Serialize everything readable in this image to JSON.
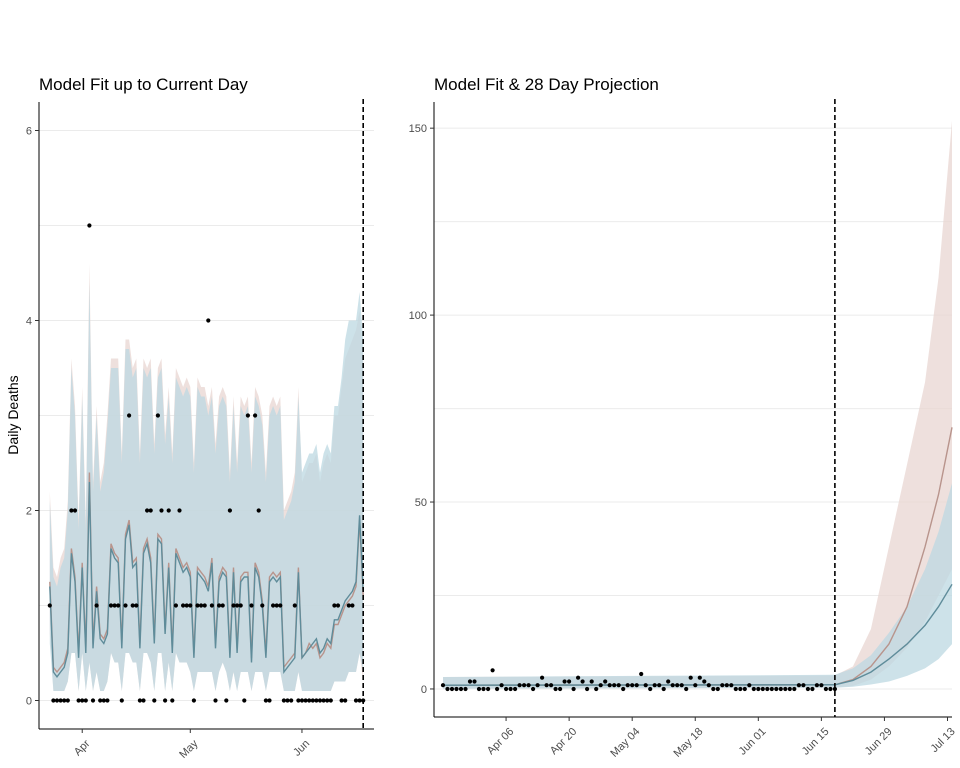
{
  "colors": {
    "ribbon_a": "#e8d5d1",
    "ribbon_b": "#bcd8e1",
    "overlap": "#c6d0d6",
    "line_a": "#b8948c",
    "line_b": "#5f8c9a",
    "points": "#000000",
    "vline": "#000000"
  },
  "chart_data": [
    {
      "type": "line",
      "title": "Model Fit up to Current Day",
      "xlabel": "",
      "ylabel": "Daily Deaths",
      "x_start": "2020-03-23",
      "x_end": "2020-06-19",
      "xlim": [
        "2020-03-20",
        "2020-06-21"
      ],
      "ylim": [
        -0.3,
        6.3
      ],
      "yticks": [
        0,
        2,
        4,
        6
      ],
      "xticks": [
        {
          "date": "2020-04-01",
          "label": "Apr"
        },
        {
          "date": "2020-05-01",
          "label": "May"
        },
        {
          "date": "2020-06-01",
          "label": "Jun"
        }
      ],
      "current_day": "2020-06-18",
      "observed": [
        1,
        0,
        0,
        0,
        0,
        0,
        2,
        2,
        0,
        0,
        0,
        5,
        0,
        1,
        0,
        0,
        0,
        1,
        1,
        1,
        0,
        1,
        3,
        1,
        1,
        0,
        0,
        2,
        2,
        0,
        3,
        2,
        0,
        2,
        0,
        1,
        2,
        1,
        1,
        1,
        0,
        1,
        1,
        1,
        4,
        1,
        0,
        1,
        1,
        0,
        2,
        1,
        1,
        1,
        0,
        3,
        1,
        3,
        2,
        1,
        0,
        0,
        1,
        1,
        1,
        0,
        0,
        0,
        1,
        0,
        0,
        0,
        0,
        0,
        0,
        0,
        0,
        0,
        0,
        1,
        1,
        0,
        0,
        1,
        1,
        0,
        0,
        0
      ],
      "series": [
        {
          "values": [
            1.25,
            0.35,
            0.3,
            0.35,
            0.4,
            0.55,
            1.6,
            1.3,
            0.5,
            1.45,
            0.55,
            2.4,
            0.6,
            1.2,
            0.7,
            0.65,
            0.75,
            1.65,
            1.55,
            1.5,
            0.6,
            1.75,
            1.9,
            1.45,
            1.5,
            0.6,
            1.6,
            1.7,
            1.5,
            0.65,
            1.75,
            1.7,
            0.75,
            1.45,
            0.55,
            1.6,
            1.5,
            1.4,
            1.45,
            1.35,
            0.5,
            1.4,
            1.35,
            1.3,
            1.2,
            1.5,
            0.6,
            1.3,
            1.4,
            1.35,
            0.5,
            1.4,
            0.55,
            1.3,
            1.35,
            1.35,
            0.45,
            1.45,
            1.35,
            1.05,
            0.5,
            1.3,
            1.35,
            1.3,
            1.35,
            0.35,
            0.4,
            0.45,
            0.5,
            1.4,
            0.45,
            0.5,
            0.6,
            0.55,
            0.6,
            0.45,
            0.5,
            0.6,
            0.55,
            0.8,
            0.8,
            0.9,
            1.0,
            1.05,
            1.1,
            1.2,
            1.9,
            1.1
          ],
          "lower": [
            0.7,
            0.1,
            0.1,
            0.1,
            0.1,
            0.2,
            0.5,
            0.5,
            0.1,
            0.5,
            0.1,
            0.4,
            0.1,
            0.3,
            0.1,
            0.1,
            0.2,
            0.5,
            0.4,
            0.4,
            0.1,
            0.5,
            0.5,
            0.4,
            0.4,
            0.1,
            0.5,
            0.5,
            0.4,
            0.1,
            0.5,
            0.5,
            0.1,
            0.4,
            0.1,
            0.5,
            0.4,
            0.4,
            0.4,
            0.3,
            0.1,
            0.3,
            0.3,
            0.3,
            0.3,
            0.3,
            0.1,
            0.3,
            0.4,
            0.3,
            0.1,
            0.3,
            0.1,
            0.3,
            0.3,
            0.3,
            0.1,
            0.3,
            0.3,
            0.3,
            0.1,
            0.3,
            0.3,
            0.3,
            0.3,
            0.1,
            0.1,
            0.1,
            0.1,
            0.3,
            0.1,
            0.1,
            0.1,
            0.1,
            0.1,
            0.1,
            0.1,
            0.1,
            0.1,
            0.2,
            0.2,
            0.2,
            0.2,
            0.3,
            0.3,
            0.3,
            0.5,
            0.2
          ],
          "upper": [
            2.2,
            1.4,
            1.3,
            1.5,
            1.6,
            2.1,
            3.6,
            3.1,
            1.9,
            3.3,
            1.9,
            4.6,
            2.3,
            3.1,
            2.3,
            2.5,
            3.0,
            3.6,
            3.6,
            3.6,
            2.6,
            3.8,
            3.8,
            3.5,
            3.6,
            2.6,
            3.6,
            3.5,
            3.6,
            2.7,
            3.5,
            3.6,
            2.8,
            3.3,
            2.6,
            3.5,
            3.4,
            3.3,
            3.4,
            3.3,
            2.5,
            3.4,
            3.3,
            3.3,
            3.1,
            3.3,
            2.7,
            3.2,
            3.3,
            3.2,
            2.4,
            3.2,
            2.5,
            3.2,
            3.1,
            3.2,
            2.5,
            3.3,
            3.2,
            3.0,
            2.4,
            3.1,
            3.2,
            3.1,
            3.2,
            2.0,
            2.1,
            2.2,
            2.4,
            3.3,
            2.3,
            2.4,
            2.5,
            2.5,
            2.6,
            2.3,
            2.5,
            2.6,
            2.5,
            3.0,
            3.0,
            3.3,
            3.6,
            3.7,
            3.8,
            3.9,
            4.1,
            3.6
          ]
        },
        {
          "values": [
            1.2,
            0.3,
            0.25,
            0.3,
            0.35,
            0.5,
            1.55,
            1.25,
            0.45,
            1.4,
            0.5,
            2.3,
            0.55,
            1.15,
            0.65,
            0.6,
            0.7,
            1.6,
            1.5,
            1.45,
            0.55,
            1.7,
            1.85,
            1.4,
            1.45,
            0.55,
            1.55,
            1.65,
            1.45,
            0.6,
            1.7,
            1.65,
            0.7,
            1.4,
            0.5,
            1.55,
            1.45,
            1.35,
            1.4,
            1.3,
            0.45,
            1.35,
            1.3,
            1.25,
            1.15,
            1.45,
            0.55,
            1.25,
            1.35,
            1.3,
            0.45,
            1.35,
            0.5,
            1.25,
            1.3,
            1.3,
            0.4,
            1.4,
            1.3,
            1.0,
            0.45,
            1.25,
            1.3,
            1.25,
            1.3,
            0.3,
            0.35,
            0.4,
            0.45,
            1.35,
            0.45,
            0.5,
            0.55,
            0.6,
            0.65,
            0.5,
            0.55,
            0.65,
            0.6,
            0.85,
            0.85,
            0.95,
            1.05,
            1.1,
            1.15,
            1.25,
            1.95,
            1.15
          ],
          "lower": [
            0.6,
            0.1,
            0.1,
            0.1,
            0.1,
            0.2,
            0.5,
            0.5,
            0.1,
            0.5,
            0.1,
            0.4,
            0.1,
            0.3,
            0.1,
            0.1,
            0.2,
            0.5,
            0.4,
            0.4,
            0.1,
            0.5,
            0.5,
            0.4,
            0.4,
            0.1,
            0.5,
            0.5,
            0.4,
            0.1,
            0.5,
            0.5,
            0.1,
            0.4,
            0.1,
            0.5,
            0.4,
            0.4,
            0.4,
            0.3,
            0.1,
            0.3,
            0.3,
            0.3,
            0.3,
            0.3,
            0.1,
            0.3,
            0.4,
            0.3,
            0.1,
            0.3,
            0.1,
            0.3,
            0.3,
            0.3,
            0.1,
            0.3,
            0.3,
            0.3,
            0.1,
            0.3,
            0.3,
            0.3,
            0.3,
            0.1,
            0.1,
            0.1,
            0.1,
            0.3,
            0.1,
            0.1,
            0.1,
            0.1,
            0.1,
            0.1,
            0.1,
            0.1,
            0.1,
            0.2,
            0.2,
            0.2,
            0.2,
            0.3,
            0.3,
            0.3,
            0.5,
            0.3
          ],
          "upper": [
            2.1,
            1.3,
            1.2,
            1.4,
            1.5,
            2.0,
            3.5,
            3.0,
            1.8,
            3.2,
            1.8,
            4.4,
            2.2,
            3.0,
            2.2,
            2.4,
            2.9,
            3.5,
            3.5,
            3.5,
            2.5,
            3.7,
            3.7,
            3.4,
            3.5,
            2.5,
            3.5,
            3.4,
            3.5,
            2.6,
            3.4,
            3.5,
            2.7,
            3.2,
            2.5,
            3.4,
            3.3,
            3.2,
            3.3,
            3.2,
            2.4,
            3.3,
            3.2,
            3.2,
            3.0,
            3.2,
            2.6,
            3.1,
            3.2,
            3.1,
            2.3,
            3.1,
            2.4,
            3.1,
            3.0,
            3.1,
            2.4,
            3.2,
            3.1,
            2.9,
            2.3,
            3.0,
            3.1,
            3.0,
            3.1,
            1.9,
            2.0,
            2.1,
            2.3,
            3.2,
            2.4,
            2.5,
            2.6,
            2.6,
            2.7,
            2.4,
            2.6,
            2.7,
            2.6,
            3.1,
            3.1,
            3.4,
            3.8,
            4.0,
            4.0,
            4.0,
            4.3,
            3.8
          ]
        }
      ]
    },
    {
      "type": "line",
      "title": "Model Fit & 28 Day Projection",
      "xlabel": "",
      "ylabel": "",
      "xlim": [
        "2020-03-21",
        "2020-07-14"
      ],
      "ylim": [
        -7.5,
        157
      ],
      "yticks": [
        0,
        50,
        100,
        150
      ],
      "xticks": [
        {
          "date": "2020-04-06",
          "label": "Apr 06"
        },
        {
          "date": "2020-04-20",
          "label": "Apr 20"
        },
        {
          "date": "2020-05-04",
          "label": "May 04"
        },
        {
          "date": "2020-05-18",
          "label": "May 18"
        },
        {
          "date": "2020-06-01",
          "label": "Jun 01"
        },
        {
          "date": "2020-06-15",
          "label": "Jun 15"
        },
        {
          "date": "2020-06-29",
          "label": "Jun 29"
        },
        {
          "date": "2020-07-13",
          "label": "Jul 13"
        }
      ],
      "current_day": "2020-06-18",
      "observed_start": "2020-03-23",
      "observed": [
        1,
        0,
        0,
        0,
        0,
        0,
        2,
        2,
        0,
        0,
        0,
        5,
        0,
        1,
        0,
        0,
        0,
        1,
        1,
        1,
        0,
        1,
        3,
        1,
        1,
        0,
        0,
        2,
        2,
        0,
        3,
        2,
        0,
        2,
        0,
        1,
        2,
        1,
        1,
        1,
        0,
        1,
        1,
        1,
        4,
        1,
        0,
        1,
        1,
        0,
        2,
        1,
        1,
        1,
        0,
        3,
        1,
        3,
        2,
        1,
        0,
        0,
        1,
        1,
        1,
        0,
        0,
        0,
        1,
        0,
        0,
        0,
        0,
        0,
        0,
        0,
        0,
        0,
        0,
        1,
        1,
        0,
        0,
        1,
        1,
        0,
        0,
        0
      ],
      "projection_dates": [
        "2020-03-23",
        "2020-06-18",
        "2020-06-22",
        "2020-06-26",
        "2020-06-30",
        "2020-07-04",
        "2020-07-08",
        "2020-07-11",
        "2020-07-14"
      ],
      "series": [
        {
          "values": [
            1.0,
            1.1,
            2.5,
            6,
            12,
            22,
            38,
            52,
            70
          ],
          "lower": [
            0.1,
            0.3,
            0.8,
            2.5,
            6,
            11,
            18,
            25,
            32
          ],
          "upper": [
            3.2,
            3.6,
            6,
            16,
            38,
            60,
            82,
            110,
            152
          ]
        },
        {
          "values": [
            1.0,
            1.1,
            2.3,
            4.5,
            8,
            12,
            17,
            22,
            28
          ],
          "lower": [
            0.1,
            0.3,
            0.6,
            1.2,
            2,
            3.5,
            5.5,
            8,
            12
          ],
          "upper": [
            3.2,
            3.8,
            5.5,
            9,
            15,
            22,
            32,
            42,
            55
          ]
        }
      ]
    }
  ]
}
